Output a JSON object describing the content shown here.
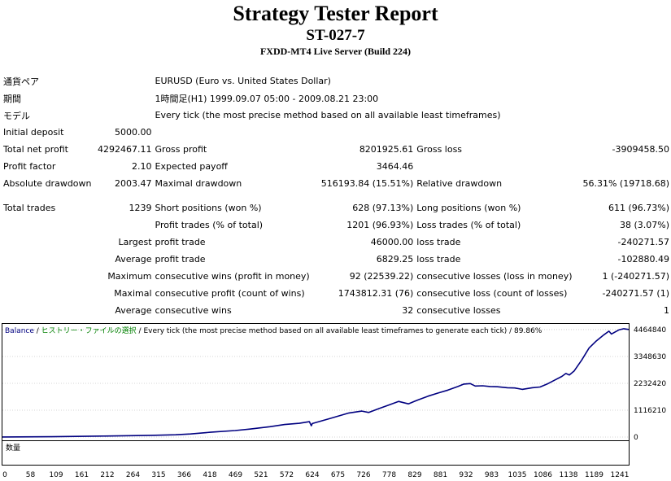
{
  "header": {
    "title": "Strategy Tester Report",
    "subtitle": "ST-027-7",
    "server": "FXDD-MT4 Live Server (Build 224)"
  },
  "info": [
    {
      "label": "通貨ペア",
      "value": "EURUSD (Euro vs. United States Dollar)"
    },
    {
      "label": "期間",
      "value": "1時間足(H1) 1999.09.07 05:00 - 2009.08.21 23:00"
    },
    {
      "label": "モデル",
      "value": "Every tick (the most precise method based on all available least timeframes)"
    }
  ],
  "stats": {
    "initial_deposit": {
      "label": "Initial deposit",
      "value": "5000.00"
    },
    "total_net_profit": {
      "label": "Total net profit",
      "value": "4292467.11"
    },
    "gross_profit": {
      "label": "Gross profit",
      "value": "8201925.61"
    },
    "gross_loss": {
      "label": "Gross loss",
      "value": "-3909458.50"
    },
    "profit_factor": {
      "label": "Profit factor",
      "value": "2.10"
    },
    "expected_payoff": {
      "label": "Expected payoff",
      "value": "3464.46"
    },
    "absolute_drawdown": {
      "label": "Absolute drawdown",
      "value": "2003.47"
    },
    "maximal_drawdown": {
      "label": "Maximal drawdown",
      "value": "516193.84 (15.51%)"
    },
    "relative_drawdown": {
      "label": "Relative drawdown",
      "value": "56.31% (19718.68)"
    },
    "total_trades": {
      "label": "Total trades",
      "value": "1239"
    },
    "short_positions": {
      "label": "Short positions (won %)",
      "value": "628 (97.13%)"
    },
    "long_positions": {
      "label": "Long positions (won %)",
      "value": "611 (96.73%)"
    },
    "profit_trades": {
      "label": "Profit trades (% of total)",
      "value": "1201 (96.93%)"
    },
    "loss_trades": {
      "label": "Loss trades (% of total)",
      "value": "38 (3.07%)"
    },
    "largest": {
      "prefix": "Largest",
      "profit_label": "profit trade",
      "profit_value": "46000.00",
      "loss_label": "loss trade",
      "loss_value": "-240271.57"
    },
    "average": {
      "prefix": "Average",
      "profit_label": "profit trade",
      "profit_value": "6829.25",
      "loss_label": "loss trade",
      "loss_value": "-102880.49"
    },
    "maximum": {
      "prefix": "Maximum",
      "profit_label": "consecutive wins (profit in money)",
      "profit_value": "92 (22539.22)",
      "loss_label": "consecutive losses (loss in money)",
      "loss_value": "1 (-240271.57)"
    },
    "maximal": {
      "prefix": "Maximal",
      "profit_label": "consecutive profit (count of wins)",
      "profit_value": "1743812.31 (76)",
      "loss_label": "consecutive loss (count of losses)",
      "loss_value": "-240271.57 (1)"
    },
    "average_consec": {
      "prefix": "Average",
      "profit_label": "consecutive wins",
      "profit_value": "32",
      "loss_label": "consecutive losses",
      "loss_value": "1"
    }
  },
  "chart_data": {
    "type": "line",
    "header_balance": "Balance",
    "header_history": "ヒストリー・ファイルの選択",
    "header_rest": " / Every tick (the most precise method based on all available least timeframes to generate each tick) / 89.86%",
    "volume_label": "数量",
    "y_ticks": [
      "4464840",
      "3348630",
      "2232420",
      "1116210",
      "0"
    ],
    "y_tick_values": [
      4464840,
      3348630,
      2232420,
      1116210,
      0
    ],
    "x_ticks": [
      "0",
      "58",
      "109",
      "161",
      "212",
      "264",
      "315",
      "366",
      "418",
      "469",
      "521",
      "572",
      "624",
      "675",
      "726",
      "778",
      "829",
      "881",
      "932",
      "983",
      "1035",
      "1086",
      "1138",
      "1189",
      "1241"
    ],
    "xlim": [
      0,
      1265
    ],
    "ylim": [
      0,
      4700000
    ],
    "line_color": "#000080",
    "series": [
      {
        "x": [
          0,
          100,
          200,
          300,
          350,
          380,
          420,
          470,
          500,
          540,
          570,
          600,
          620,
          624,
          626,
          660,
          700,
          726,
          740,
          760,
          780,
          800,
          820,
          840,
          860,
          880,
          900,
          920,
          932,
          945,
          955,
          970,
          985,
          1000,
          1020,
          1035,
          1050,
          1070,
          1086,
          1100,
          1115,
          1130,
          1138,
          1145,
          1155,
          1170,
          1185,
          1200,
          1215,
          1225,
          1230,
          1245,
          1255,
          1265
        ],
        "y": [
          5000,
          15000,
          40000,
          70000,
          95000,
          130000,
          200000,
          270000,
          330000,
          430000,
          520000,
          570000,
          640000,
          470000,
          560000,
          760000,
          1000000,
          1080000,
          1020000,
          1180000,
          1330000,
          1480000,
          1380000,
          1550000,
          1700000,
          1830000,
          1950000,
          2100000,
          2200000,
          2220000,
          2120000,
          2130000,
          2100000,
          2090000,
          2050000,
          2040000,
          1980000,
          2050000,
          2080000,
          2200000,
          2360000,
          2520000,
          2640000,
          2580000,
          2750000,
          3200000,
          3700000,
          4000000,
          4250000,
          4400000,
          4280000,
          4450000,
          4500000,
          4470000
        ]
      }
    ]
  }
}
